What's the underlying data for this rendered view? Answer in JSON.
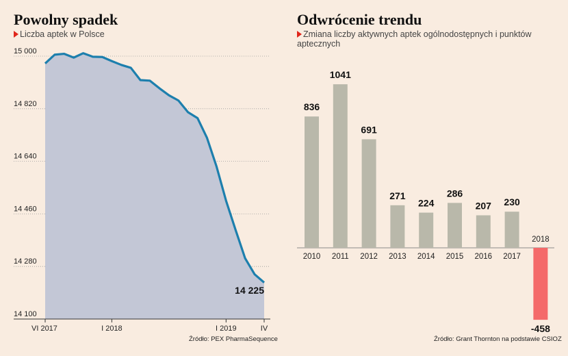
{
  "left": {
    "title": "Powolny spadek",
    "subtitle": "Liczba aptek w Polsce",
    "source": "Źródło: PEX PharmaSequence",
    "end_label": "14 225",
    "y_tick_labels": [
      "15 000",
      "14 820",
      "14 640",
      "14 460",
      "14 280",
      "14 100"
    ],
    "x_tick_labels": [
      "VI 2017",
      "I 2018",
      "I 2019",
      "IV"
    ]
  },
  "right": {
    "title": "Odwrócenie trendu",
    "subtitle": "Zmiana liczby aktywnych aptek ogólnodostępnych i punktów aptecznych",
    "source": "Źródło: Grant Thornton na podstawie CSIOZ"
  },
  "colors": {
    "line": "#1d7fad",
    "area": "#c3c7d6",
    "bar": "#b9b8aa",
    "bar_negative": "#f46a6a",
    "accent": "#e0261b"
  },
  "chart_data": [
    {
      "type": "area",
      "title": "Powolny spadek",
      "subtitle": "Liczba aptek w Polsce",
      "ylim": [
        14100,
        15000
      ],
      "y_ticks": [
        15000,
        14820,
        14640,
        14460,
        14280,
        14100
      ],
      "x_tick_labels": [
        "VI 2017",
        "I 2018",
        "I 2019",
        "IV"
      ],
      "grid": "horizontal dotted",
      "series": [
        {
          "values": [
            14975,
            15005,
            15008,
            14995,
            15010,
            14998,
            14997,
            14983,
            14970,
            14960,
            14918,
            14916,
            14890,
            14866,
            14848,
            14808,
            14788,
            14720,
            14622,
            14505,
            14405,
            14308,
            14253,
            14225
          ]
        }
      ],
      "annotation": "14 225"
    },
    {
      "type": "bar",
      "title": "Odwrócenie trendu",
      "subtitle": "Zmiana liczby aktywnych aptek ogólnodostępnych i punktów aptecznych",
      "categories": [
        "2010",
        "2011",
        "2012",
        "2013",
        "2014",
        "2015",
        "2016",
        "2017",
        "2018"
      ],
      "values": [
        836,
        1041,
        691,
        271,
        224,
        286,
        207,
        230,
        -458
      ],
      "value_labels": [
        "836",
        "1041",
        "691",
        "271",
        "224",
        "286",
        "207",
        "230",
        "-458"
      ]
    }
  ]
}
